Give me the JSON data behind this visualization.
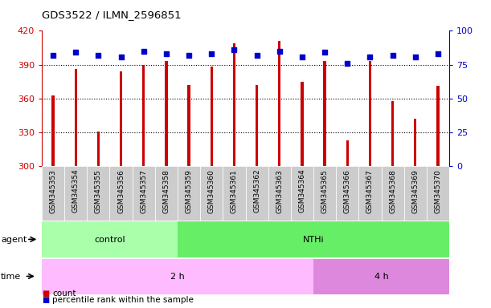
{
  "title": "GDS3522 / ILMN_2596851",
  "samples": [
    "GSM345353",
    "GSM345354",
    "GSM345355",
    "GSM345356",
    "GSM345357",
    "GSM345358",
    "GSM345359",
    "GSM345360",
    "GSM345361",
    "GSM345362",
    "GSM345363",
    "GSM345364",
    "GSM345365",
    "GSM345366",
    "GSM345367",
    "GSM345368",
    "GSM345369",
    "GSM345370"
  ],
  "counts": [
    363,
    386,
    331,
    384,
    390,
    393,
    372,
    388,
    409,
    372,
    411,
    375,
    393,
    323,
    393,
    358,
    342,
    371
  ],
  "percentile_ranks": [
    82,
    84,
    82,
    81,
    85,
    83,
    82,
    83,
    86,
    82,
    85,
    81,
    84,
    76,
    81,
    82,
    81,
    83
  ],
  "ylim_left": [
    300,
    420
  ],
  "ylim_right": [
    0,
    100
  ],
  "yticks_left": [
    300,
    330,
    360,
    390,
    420
  ],
  "yticks_right": [
    0,
    25,
    50,
    75,
    100
  ],
  "bar_color": "#cc0000",
  "dot_color": "#0000cc",
  "agent_groups": [
    {
      "label": "control",
      "start": 0,
      "end": 6,
      "color": "#aaffaa"
    },
    {
      "label": "NTHi",
      "start": 6,
      "end": 18,
      "color": "#66ee66"
    }
  ],
  "time_groups": [
    {
      "label": "2 h",
      "start": 0,
      "end": 12,
      "color": "#ffbbff"
    },
    {
      "label": "4 h",
      "start": 12,
      "end": 18,
      "color": "#dd88dd"
    }
  ],
  "legend_count_label": "count",
  "legend_pct_label": "percentile rank within the sample",
  "background_plot": "#ffffff",
  "xtick_bg": "#cccccc"
}
